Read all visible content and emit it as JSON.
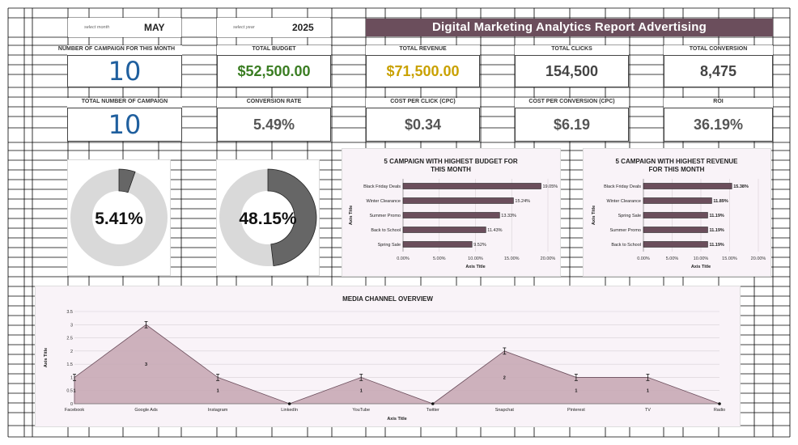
{
  "header": {
    "month_label": "select month",
    "month_value": "MAY",
    "year_label": "select year",
    "year_value": "2025",
    "title": "Digital Marketing Analytics Report Advertising"
  },
  "kpis": {
    "campaigns_this_month": {
      "label": "NUMBER OF CAMPAIGN FOR THIS MONTH",
      "value": "10"
    },
    "total_budget": {
      "label": "TOTAL BUDGET",
      "value": "$52,500.00"
    },
    "total_revenue": {
      "label": "TOTAL REVENUE",
      "value": "$71,500.00"
    },
    "total_clicks": {
      "label": "TOTAL CLICKS",
      "value": "154,500"
    },
    "total_conversion": {
      "label": "TOTAL CONVERSION",
      "value": "8,475"
    },
    "total_campaigns": {
      "label": "TOTAL NUMBER OF CAMPAIGN",
      "value": "10"
    },
    "conversion_rate": {
      "label": "CONVERSION RATE",
      "value": "5.49%"
    },
    "cpc": {
      "label": "COST PER CLICK (CPC)",
      "value": "$0.34"
    },
    "cost_per_conversion": {
      "label": "COST PER CONVERSION (CPC)",
      "value": "$6.19"
    },
    "roi": {
      "label": "ROI",
      "value": "36.19%"
    }
  },
  "colors": {
    "brand": "#6b4e5c",
    "budget_green": "#3a7d22",
    "revenue_gold": "#c9a100",
    "count_blue": "#1f5f9e",
    "bar_fill": "#6b4e5c",
    "area_fill": "#c8aab5",
    "donut_dark": "#666666",
    "donut_light": "#d9d9d9"
  },
  "chart_data": [
    {
      "type": "pie",
      "variant": "donut",
      "center_label": "5.41%",
      "values": [
        5.41,
        94.59
      ]
    },
    {
      "type": "pie",
      "variant": "donut",
      "center_label": "48.15%",
      "values": [
        48.15,
        51.85
      ]
    },
    {
      "type": "bar",
      "orientation": "horizontal",
      "title": "5 CAMPAIGN WITH HIGHEST BUDGET FOR THIS MONTH",
      "xlabel": "Axis Title",
      "ylabel": "Axis Title",
      "categories": [
        "Black Friday Deals",
        "Winter Clearance",
        "Summer Promo",
        "Back to School",
        "Spring Sale"
      ],
      "values": [
        19.05,
        15.24,
        13.33,
        11.43,
        9.52
      ],
      "data_labels": [
        "19.05%",
        "15.24%",
        "13.33%",
        "11.43%",
        "9.52%"
      ],
      "ticks": [
        "0.00%",
        "5.00%",
        "10.00%",
        "15.00%",
        "20.00%"
      ],
      "xlim": [
        0,
        20
      ]
    },
    {
      "type": "bar",
      "orientation": "horizontal",
      "title": "5 CAMPAIGN WITH HIGHEST REVENUE FOR THIS MONTH",
      "xlabel": "Axis Title",
      "ylabel": "Axis Title",
      "categories": [
        "Black Friday Deals",
        "Winter Clearance",
        "Spring Sale",
        "Summer Promo",
        "Back to School"
      ],
      "values": [
        15.38,
        11.89,
        11.19,
        11.19,
        11.19
      ],
      "data_labels": [
        "15.38%",
        "11.89%",
        "11.19%",
        "11.19%",
        "11.19%"
      ],
      "ticks": [
        "0.00%",
        "5.00%",
        "10.00%",
        "15.00%",
        "20.00%"
      ],
      "xlim": [
        0,
        20
      ]
    },
    {
      "type": "area",
      "title": "MEDIA CHANNEL OVERVIEW",
      "xlabel": "Axis Title",
      "ylabel": "Axis Title",
      "categories": [
        "Facebook",
        "Google Ads",
        "Instagram",
        "LinkedIn",
        "YouTube",
        "Twitter",
        "Snapchat",
        "Pinterest",
        "TV",
        "Radio"
      ],
      "values": [
        1,
        3,
        1,
        0,
        1,
        0,
        2,
        1,
        1,
        0
      ],
      "data_labels": [
        "1",
        "3",
        "1",
        "",
        "1",
        "",
        "2",
        "1",
        "1",
        ""
      ],
      "yticks": [
        "0",
        "0.5",
        "1",
        "1.5",
        "2",
        "2.5",
        "3",
        "3.5"
      ],
      "ylim": [
        0,
        3.5
      ],
      "grid": true
    }
  ]
}
